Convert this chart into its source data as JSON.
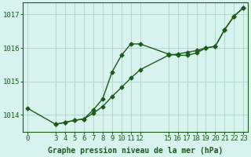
{
  "title": "",
  "xlabel": "Graphe pression niveau de la mer (hPa)",
  "ylabel": "",
  "bg_color": "#d8f2ee",
  "grid_color": "#b2d8d2",
  "line_color": "#1a5c1a",
  "line1_x": [
    0,
    3,
    4,
    5,
    6,
    7,
    8,
    9,
    10,
    11,
    12,
    15,
    16,
    17,
    18,
    19,
    20,
    21,
    22,
    23
  ],
  "line1_y": [
    1014.2,
    1013.72,
    1013.78,
    1013.84,
    1013.88,
    1014.05,
    1014.25,
    1014.55,
    1014.82,
    1015.1,
    1015.35,
    1015.78,
    1015.82,
    1015.87,
    1015.92,
    1016.0,
    1016.05,
    1016.55,
    1016.95,
    1017.2
  ],
  "line2_x": [
    3,
    4,
    5,
    6,
    7,
    8,
    9,
    10,
    11,
    12,
    15,
    16,
    17,
    18,
    19,
    20,
    21,
    22,
    23
  ],
  "line2_y": [
    1013.72,
    1013.78,
    1013.84,
    1013.88,
    1014.15,
    1014.48,
    1015.28,
    1015.78,
    1016.12,
    1016.12,
    1015.82,
    1015.78,
    1015.78,
    1015.85,
    1016.0,
    1016.05,
    1016.55,
    1016.95,
    1017.2
  ],
  "ylim": [
    1013.5,
    1017.35
  ],
  "yticks": [
    1014,
    1015,
    1016,
    1017
  ],
  "xticks": [
    0,
    3,
    4,
    5,
    6,
    7,
    8,
    9,
    10,
    11,
    12,
    15,
    16,
    17,
    18,
    19,
    20,
    21,
    22,
    23
  ],
  "marker": "D",
  "marker_size": 2.5,
  "line_width": 1.0,
  "font_size": 6.5,
  "xlabel_font_size": 7.0,
  "xlim": [
    -0.5,
    23.5
  ]
}
